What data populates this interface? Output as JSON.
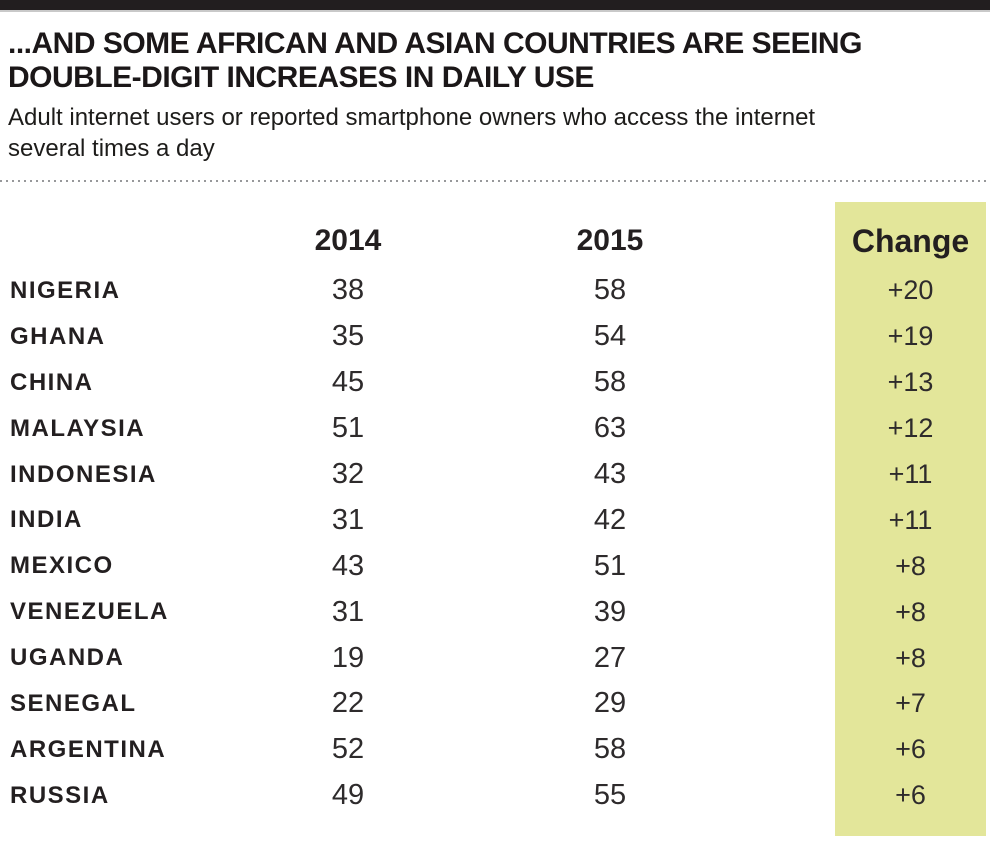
{
  "page": {
    "top_bar_color": "#221e1f",
    "highlight_color": "#e3e69a"
  },
  "header": {
    "title_lines": [
      "...AND SOME AFRICAN AND ASIAN COUNTRIES ARE SEEING",
      "DOUBLE-DIGIT INCREASES IN DAILY USE"
    ],
    "subtitle_lines": [
      "Adult internet users or reported smartphone owners who access the internet",
      "several times a day"
    ]
  },
  "chart_data": {
    "type": "table",
    "title": "...AND SOME AFRICAN AND ASIAN COUNTRIES ARE SEEING DOUBLE-DIGIT INCREASES IN DAILY USE",
    "subtitle": "Adult internet users or reported smartphone owners who access the internet several times a day",
    "columns": [
      "2014",
      "2015",
      "Change"
    ],
    "highlight_column": "Change",
    "rows": [
      {
        "country": "NIGERIA",
        "y2014": 38,
        "y2015": 58,
        "change": "+20"
      },
      {
        "country": "GHANA",
        "y2014": 35,
        "y2015": 54,
        "change": "+19"
      },
      {
        "country": "CHINA",
        "y2014": 45,
        "y2015": 58,
        "change": "+13"
      },
      {
        "country": "MALAYSIA",
        "y2014": 51,
        "y2015": 63,
        "change": "+12"
      },
      {
        "country": "INDONESIA",
        "y2014": 32,
        "y2015": 43,
        "change": "+11"
      },
      {
        "country": "INDIA",
        "y2014": 31,
        "y2015": 42,
        "change": "+11"
      },
      {
        "country": "MEXICO",
        "y2014": 43,
        "y2015": 51,
        "change": "+8"
      },
      {
        "country": "VENEZUELA",
        "y2014": 31,
        "y2015": 39,
        "change": "+8"
      },
      {
        "country": "UGANDA",
        "y2014": 19,
        "y2015": 27,
        "change": "+8"
      },
      {
        "country": "SENEGAL",
        "y2014": 22,
        "y2015": 29,
        "change": "+7"
      },
      {
        "country": "ARGENTINA",
        "y2014": 52,
        "y2015": 58,
        "change": "+6"
      },
      {
        "country": "RUSSIA",
        "y2014": 49,
        "y2015": 55,
        "change": "+6"
      }
    ]
  }
}
